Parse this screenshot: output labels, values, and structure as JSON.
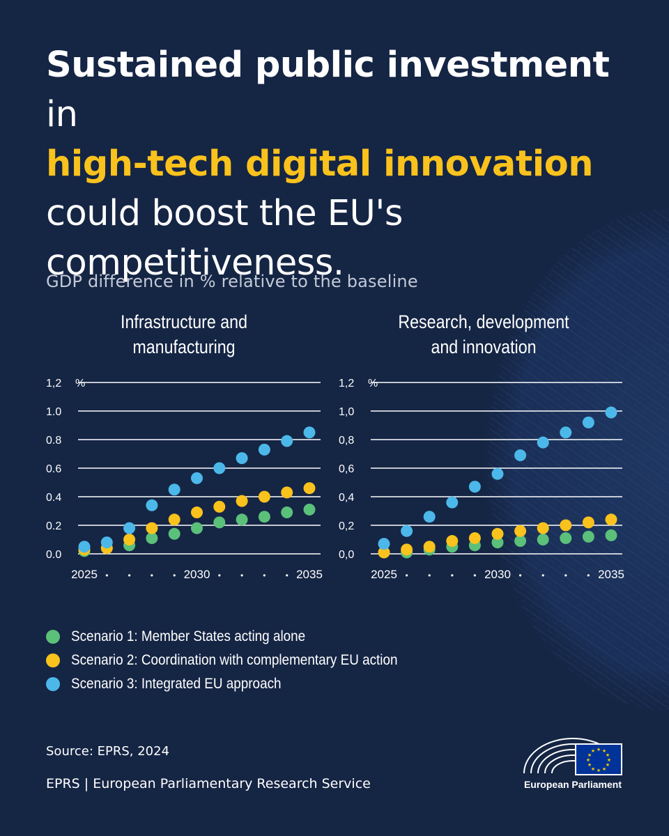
{
  "title": {
    "bold": "Sustained public investment",
    "after_bold": " in",
    "highlight": "high-tech digital innovation",
    "line3": "could boost the EU's",
    "line4": "competitiveness."
  },
  "subtitle": "GDP difference in % relative to the baseline",
  "colors": {
    "background": "#152544",
    "scenario1": "#5bc07a",
    "scenario2": "#f9c21c",
    "scenario3": "#4cb8ea",
    "highlight": "#f9c21c"
  },
  "chart_data": [
    {
      "type": "scatter",
      "title_lines": [
        "Infrastructure and",
        "manufacturing"
      ],
      "ylim": [
        0,
        1.2
      ],
      "y_ticks": [
        "0.0",
        "0.2",
        "0.4",
        "0.6",
        "0.8",
        "1.0",
        "1,2"
      ],
      "y_unit": "%",
      "x": [
        2025,
        2026,
        2027,
        2028,
        2029,
        2030,
        2031,
        2032,
        2033,
        2034,
        2035
      ],
      "x_labels": [
        "2025",
        "•",
        "•",
        "•",
        "•",
        "2030",
        "•",
        "•",
        "•",
        "•",
        "2035"
      ],
      "series": [
        {
          "key": "scenario1",
          "values": [
            0.02,
            0.04,
            0.06,
            0.11,
            0.14,
            0.18,
            0.22,
            0.24,
            0.26,
            0.29,
            0.31
          ]
        },
        {
          "key": "scenario2",
          "values": [
            0.03,
            0.04,
            0.1,
            0.18,
            0.24,
            0.29,
            0.33,
            0.37,
            0.4,
            0.43,
            0.46
          ]
        },
        {
          "key": "scenario3",
          "values": [
            0.05,
            0.08,
            0.18,
            0.34,
            0.45,
            0.53,
            0.6,
            0.67,
            0.73,
            0.79,
            0.85
          ]
        }
      ]
    },
    {
      "type": "scatter",
      "title_lines": [
        "Research, development",
        "and innovation"
      ],
      "ylim": [
        0,
        1.2
      ],
      "y_ticks": [
        "0,0",
        "0,2",
        "0,4",
        "0,6",
        "0,8",
        "1,0",
        "1,2"
      ],
      "y_unit": "%",
      "x": [
        2025,
        2026,
        2027,
        2028,
        2029,
        2030,
        2031,
        2032,
        2033,
        2034,
        2035
      ],
      "x_labels": [
        "2025",
        "•",
        "•",
        "•",
        "•",
        "2030",
        "•",
        "•",
        "•",
        "•",
        "2035"
      ],
      "series": [
        {
          "key": "scenario1",
          "values": [
            0.01,
            0.01,
            0.03,
            0.05,
            0.06,
            0.08,
            0.09,
            0.1,
            0.11,
            0.12,
            0.13
          ]
        },
        {
          "key": "scenario2",
          "values": [
            0.01,
            0.03,
            0.05,
            0.09,
            0.11,
            0.14,
            0.16,
            0.18,
            0.2,
            0.22,
            0.24
          ]
        },
        {
          "key": "scenario3",
          "values": [
            0.07,
            0.16,
            0.26,
            0.36,
            0.47,
            0.56,
            0.69,
            0.78,
            0.85,
            0.92,
            0.99
          ]
        }
      ]
    }
  ],
  "legend": [
    {
      "key": "scenario1",
      "label": "Scenario 1: Member States acting alone"
    },
    {
      "key": "scenario2",
      "label": "Scenario 2: Coordination with complementary EU action"
    },
    {
      "key": "scenario3",
      "label": "Scenario 3: Integrated EU approach"
    }
  ],
  "source": "Source: EPRS, 2024",
  "footer": "EPRS | European Parliamentary Research Service",
  "logo": {
    "name": "European Parliament",
    "icon": "european-parliament-hemicycle-flag-icon"
  }
}
